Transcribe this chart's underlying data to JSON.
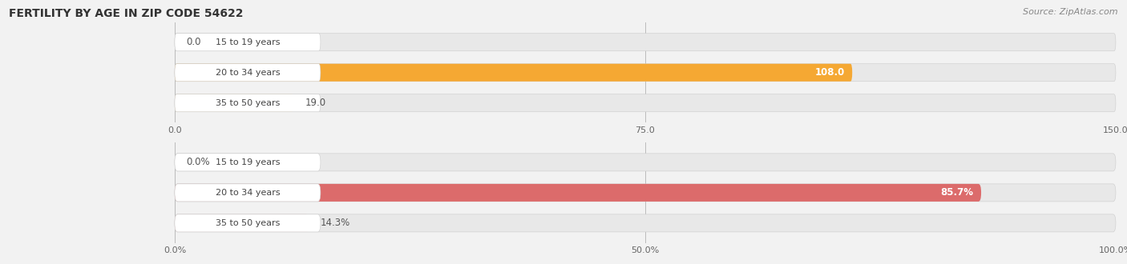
{
  "title": "FERTILITY BY AGE IN ZIP CODE 54622",
  "source": "Source: ZipAtlas.com",
  "chart1": {
    "categories": [
      "15 to 19 years",
      "20 to 34 years",
      "35 to 50 years"
    ],
    "values": [
      0.0,
      108.0,
      19.0
    ],
    "xlim_max": 150,
    "xticks": [
      0.0,
      75.0,
      150.0
    ],
    "xtick_labels": [
      "0.0",
      "75.0",
      "150.0"
    ],
    "bar_color_strong": "#F5A833",
    "bar_color_light": "#F8D49A",
    "bar_bg_color": "#E8E8E8"
  },
  "chart2": {
    "categories": [
      "15 to 19 years",
      "20 to 34 years",
      "35 to 50 years"
    ],
    "values": [
      0.0,
      85.7,
      14.3
    ],
    "xlim_max": 100,
    "xticks": [
      0.0,
      50.0,
      100.0
    ],
    "xtick_labels": [
      "0.0%",
      "50.0%",
      "100.0%"
    ],
    "bar_color_strong": "#DC6B6B",
    "bar_color_light": "#EDA8A8",
    "bar_bg_color": "#E8E8E8"
  },
  "fig_bg_color": "#F2F2F2",
  "title_fontsize": 10,
  "source_fontsize": 8,
  "label_fontsize": 8.5,
  "tick_fontsize": 8,
  "category_fontsize": 8,
  "bar_height": 0.58
}
